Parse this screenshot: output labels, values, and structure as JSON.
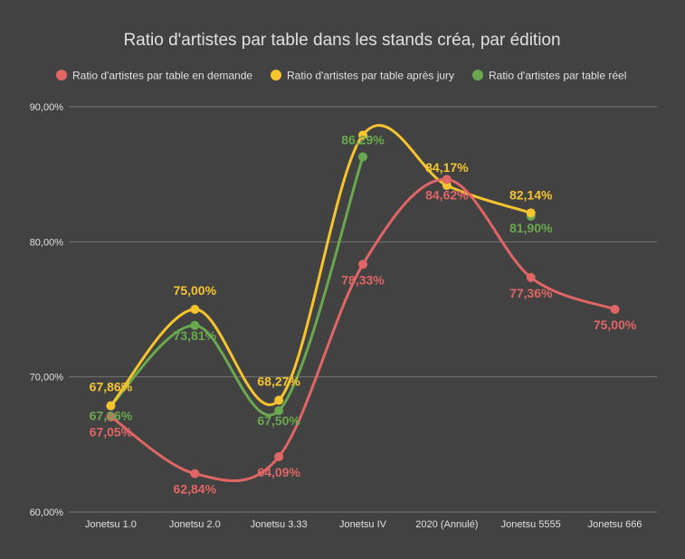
{
  "chart_data": {
    "type": "line",
    "title": "Ratio d'artistes par table dans les stands créa, par édition",
    "categories": [
      "Jonetsu 1.0",
      "Jonetsu 2.0",
      "Jonetsu 3.33",
      "Jonetsu IV",
      "2020 (Annulé)",
      "Jonetsu 5555",
      "Jonetsu 666"
    ],
    "y_ticks": [
      "60,00%",
      "70,00%",
      "80,00%",
      "90,00%"
    ],
    "ylim": [
      60,
      90
    ],
    "grid": true,
    "legend_position": "top",
    "series": [
      {
        "name": "Ratio d'artistes par table en demande",
        "color": "#e06666",
        "values": [
          67.05,
          62.84,
          64.09,
          78.33,
          84.62,
          77.36,
          75.0
        ],
        "labels": [
          "67,05%",
          "62,84%",
          "64,09%",
          "78,33%",
          "84,62%",
          "77,36%",
          "75,00%"
        ]
      },
      {
        "name": "Ratio d'artistes par table après jury",
        "color": "#f6c42f",
        "values": [
          67.86,
          75.0,
          68.27,
          87.9,
          84.17,
          82.14,
          null
        ],
        "labels": [
          "67,86%",
          "75,00%",
          "68,27%",
          "",
          "84,17%",
          "82,14%",
          ""
        ]
      },
      {
        "name": "Ratio d'artistes par table réel",
        "color": "#6aa84f",
        "values": [
          67.86,
          73.81,
          67.5,
          86.29,
          null,
          81.9,
          null
        ],
        "labels": [
          "67,86%",
          "73,81%",
          "67,50%",
          "86,29%",
          "",
          "81,90%",
          ""
        ]
      }
    ]
  }
}
